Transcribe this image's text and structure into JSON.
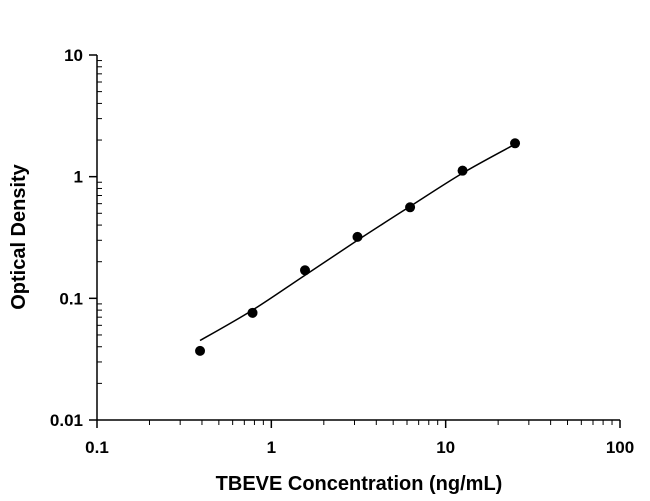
{
  "chart_data": {
    "type": "scatter",
    "title": "",
    "xlabel": "TBEVE Concentration (ng/mL)",
    "ylabel": "Optical Density",
    "x_scale": "log",
    "y_scale": "log",
    "xlim": [
      0.1,
      100
    ],
    "ylim": [
      0.01,
      10
    ],
    "x_ticks": [
      "0.1",
      "1",
      "10",
      "100"
    ],
    "y_ticks": [
      "0.01",
      "0.1",
      "1",
      "10"
    ],
    "grid": false,
    "legend": "none",
    "point_color": "#000000",
    "points": [
      {
        "x": 0.39,
        "y": 0.037
      },
      {
        "x": 0.78,
        "y": 0.076
      },
      {
        "x": 1.56,
        "y": 0.17
      },
      {
        "x": 3.12,
        "y": 0.32
      },
      {
        "x": 6.25,
        "y": 0.56
      },
      {
        "x": 12.5,
        "y": 1.12
      },
      {
        "x": 25,
        "y": 1.88
      }
    ],
    "fit_curve": [
      {
        "x": 0.39,
        "y": 0.045
      },
      {
        "x": 0.78,
        "y": 0.08
      },
      {
        "x": 1.56,
        "y": 0.155
      },
      {
        "x": 3.12,
        "y": 0.3
      },
      {
        "x": 6.25,
        "y": 0.57
      },
      {
        "x": 12.5,
        "y": 1.07
      },
      {
        "x": 25,
        "y": 1.85
      }
    ]
  }
}
